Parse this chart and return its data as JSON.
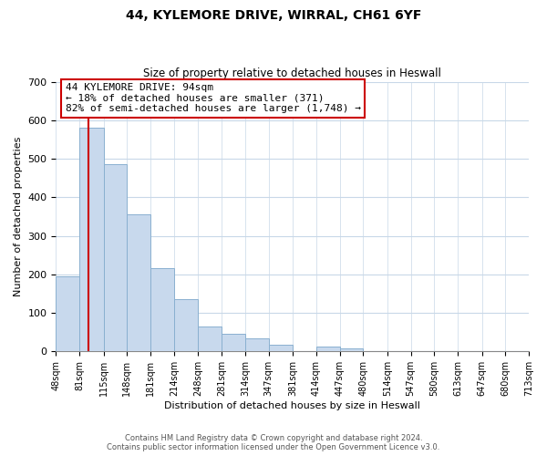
{
  "title": "44, KYLEMORE DRIVE, WIRRAL, CH61 6YF",
  "subtitle": "Size of property relative to detached houses in Heswall",
  "xlabel": "Distribution of detached houses by size in Heswall",
  "ylabel": "Number of detached properties",
  "bin_edges": [
    48,
    81,
    115,
    148,
    181,
    214,
    248,
    281,
    314,
    347,
    381,
    414,
    447,
    480,
    514,
    547,
    580,
    613,
    647,
    680,
    713
  ],
  "bin_labels": [
    "48sqm",
    "81sqm",
    "115sqm",
    "148sqm",
    "181sqm",
    "214sqm",
    "248sqm",
    "281sqm",
    "314sqm",
    "347sqm",
    "381sqm",
    "414sqm",
    "447sqm",
    "480sqm",
    "514sqm",
    "547sqm",
    "580sqm",
    "613sqm",
    "647sqm",
    "680sqm",
    "713sqm"
  ],
  "bar_heights": [
    195,
    580,
    485,
    355,
    215,
    135,
    65,
    45,
    35,
    17,
    0,
    12,
    7,
    0,
    0,
    0,
    0,
    0,
    0,
    0
  ],
  "bar_color": "#c8d9ed",
  "bar_edge_color": "#8ab0d0",
  "property_line_x": 94,
  "property_line_color": "#cc0000",
  "ylim": [
    0,
    700
  ],
  "yticks": [
    0,
    100,
    200,
    300,
    400,
    500,
    600,
    700
  ],
  "annotation_line1": "44 KYLEMORE DRIVE: 94sqm",
  "annotation_line2": "← 18% of detached houses are smaller (371)",
  "annotation_line3": "82% of semi-detached houses are larger (1,748) →",
  "annotation_box_color": "#ffffff",
  "annotation_box_edge": "#cc0000",
  "footer_line1": "Contains HM Land Registry data © Crown copyright and database right 2024.",
  "footer_line2": "Contains public sector information licensed under the Open Government Licence v3.0.",
  "background_color": "#ffffff",
  "grid_color": "#c8d8e8"
}
